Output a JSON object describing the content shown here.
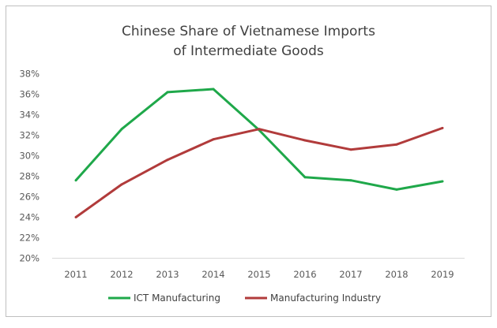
{
  "chart_data": {
    "type": "line",
    "title": "Chinese Share of Vietnamese Imports of Intermediate Goods",
    "title_lines": [
      "Chinese Share of Vietnamese Imports",
      "of Intermediate Goods"
    ],
    "xlabel": "",
    "ylabel": "",
    "categories": [
      "2011",
      "2012",
      "2013",
      "2014",
      "2015",
      "2016",
      "2017",
      "2018",
      "2019"
    ],
    "y_ticks": [
      "20%",
      "22%",
      "24%",
      "26%",
      "28%",
      "30%",
      "32%",
      "34%",
      "36%",
      "38%"
    ],
    "ylim": [
      20,
      38
    ],
    "grid": false,
    "legend_position": "bottom",
    "series": [
      {
        "name": "ICT Manufacturing",
        "color": "#1fa84a",
        "values": [
          27.6,
          32.6,
          36.2,
          36.5,
          32.5,
          27.9,
          27.6,
          26.7,
          27.5
        ]
      },
      {
        "name": "Manufacturing Industry",
        "color": "#b13b3b",
        "values": [
          24.0,
          27.2,
          29.6,
          31.6,
          32.6,
          31.5,
          30.6,
          31.1,
          32.7
        ]
      }
    ]
  }
}
